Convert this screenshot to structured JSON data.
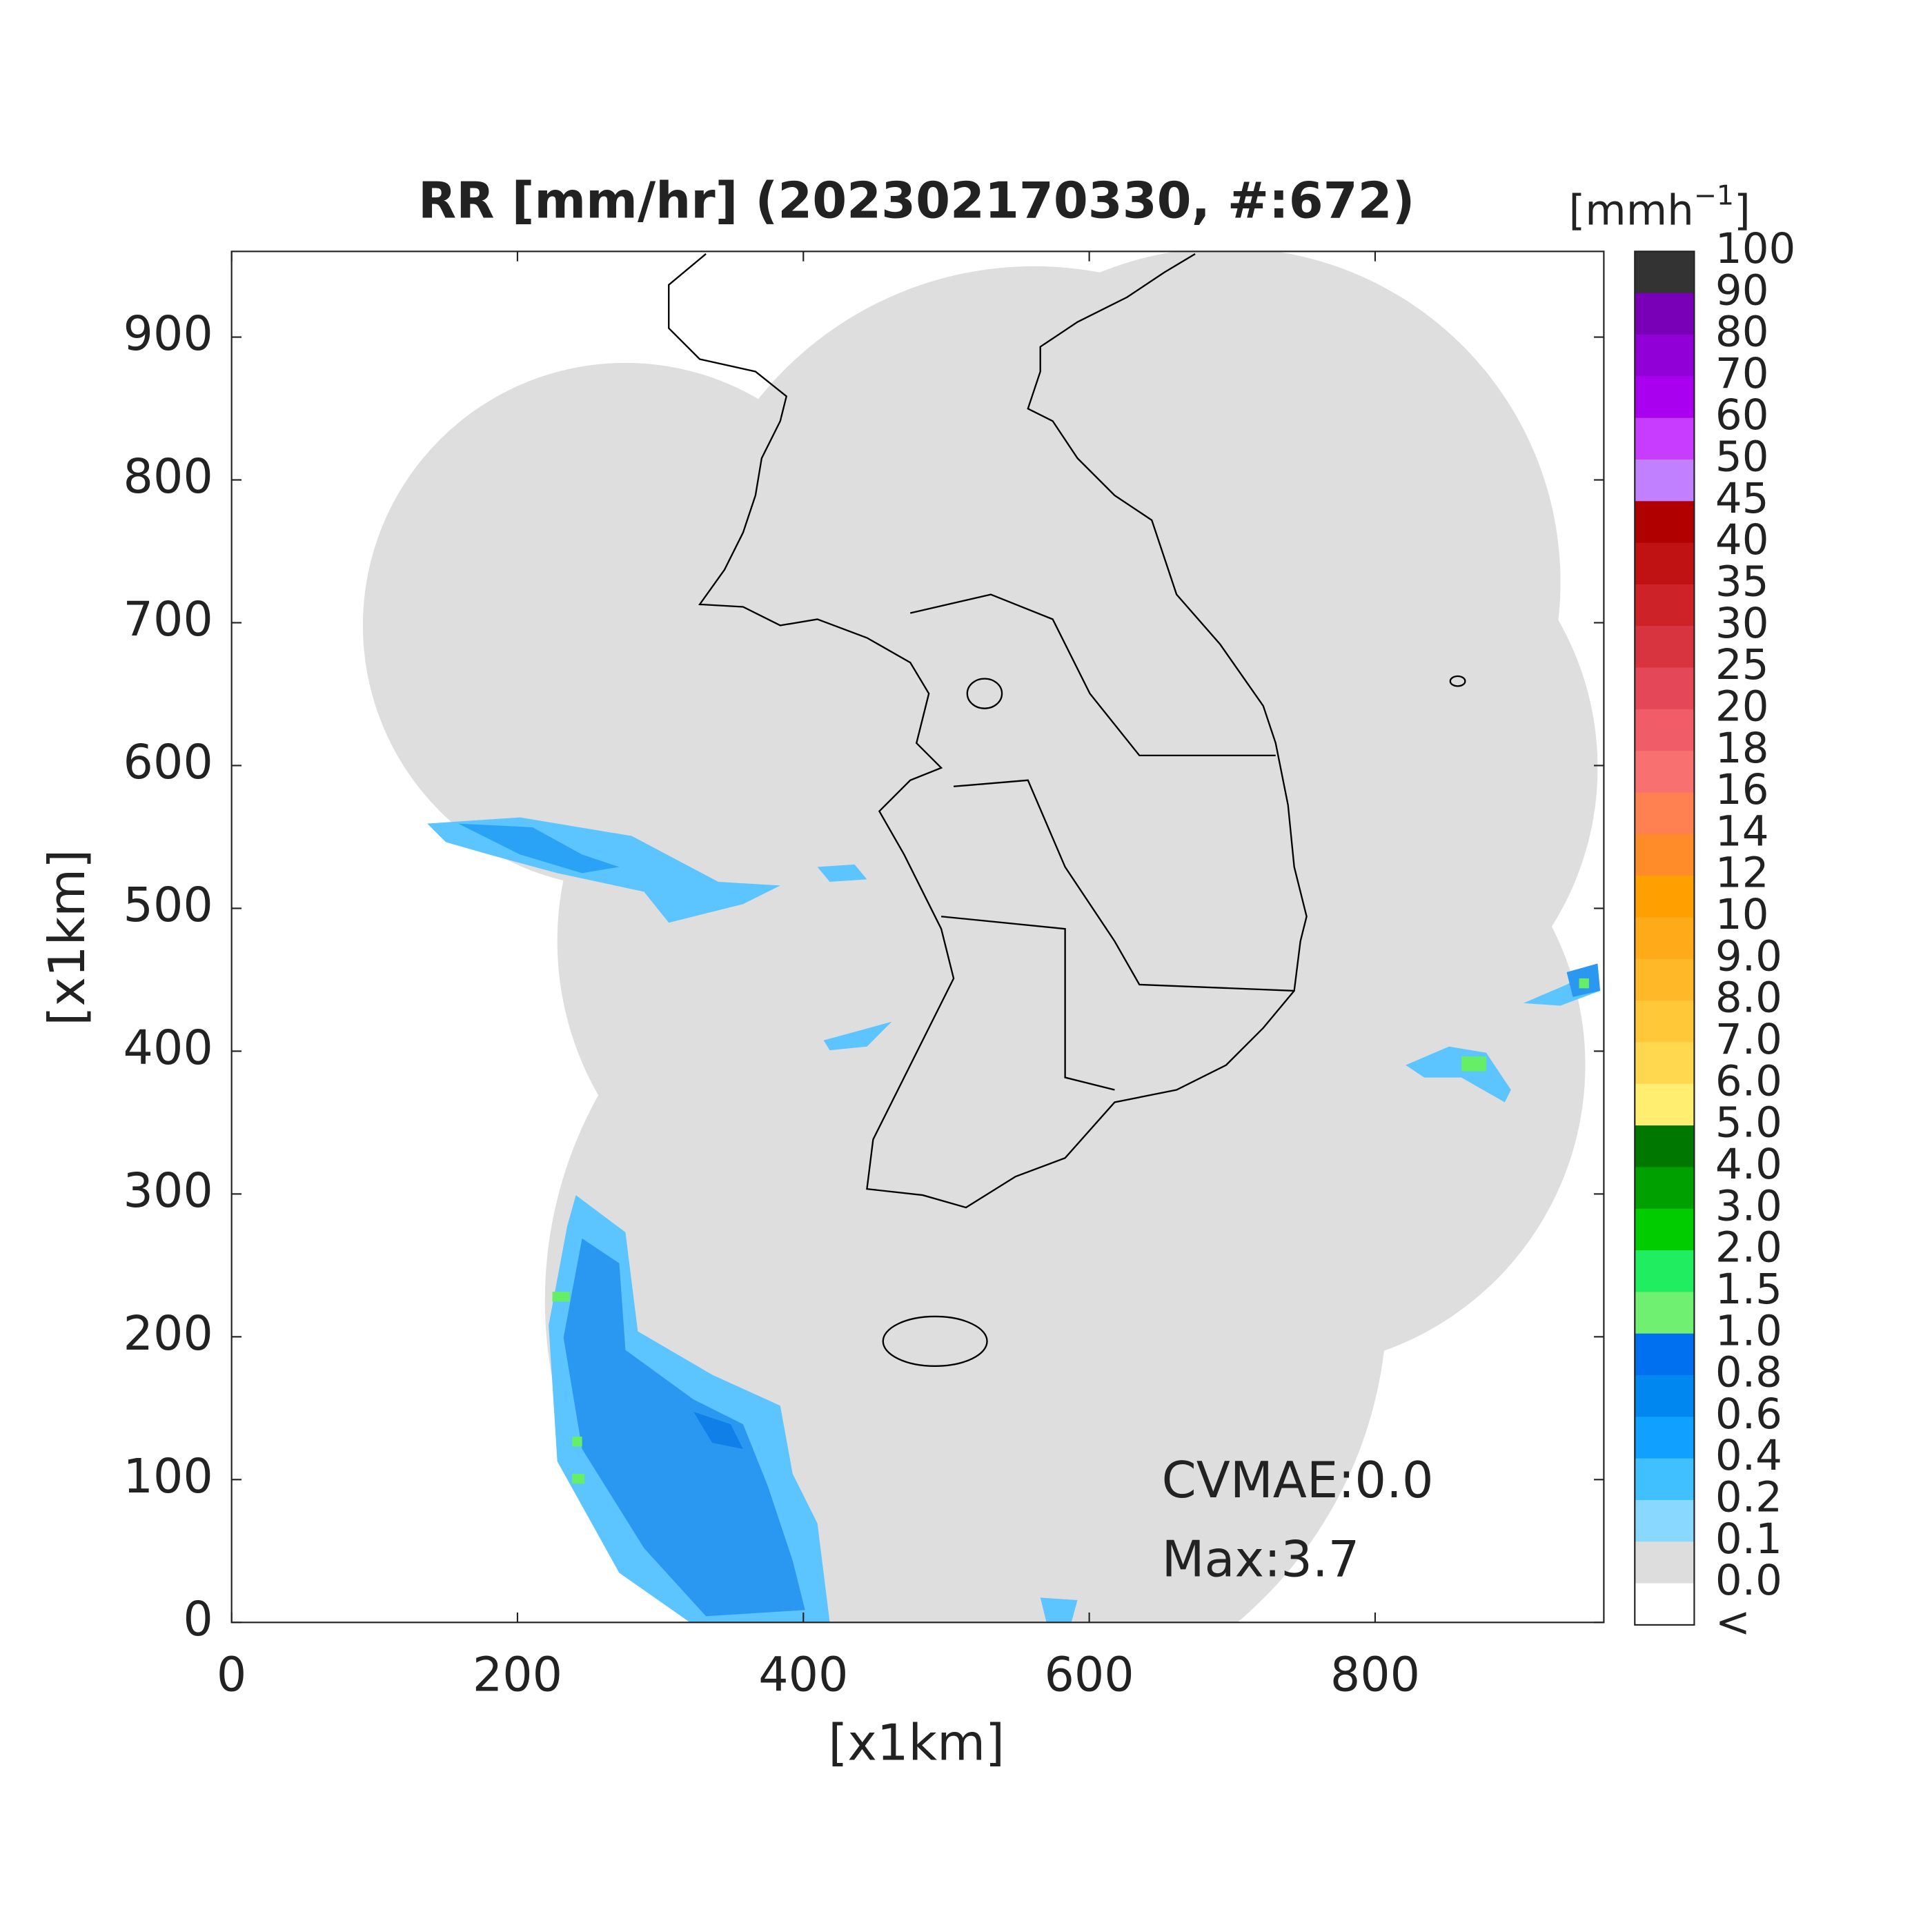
{
  "map": {
    "title": "RR [mm/hr] (202302170330, #:672)",
    "xlabel": "[x1km]",
    "ylabel": "[x1km]",
    "xlim": [
      0,
      960
    ],
    "ylim": [
      0,
      960
    ],
    "xticks": [
      0,
      200,
      400,
      600,
      800
    ],
    "yticks": [
      0,
      100,
      200,
      300,
      400,
      500,
      600,
      700,
      800,
      900
    ],
    "colorbar": {
      "unit": "[mmh",
      "unit_exponent": "−1",
      "unit_close": "]",
      "labels": [
        "100",
        "90",
        "80",
        "70",
        "60",
        "50",
        "45",
        "40",
        "35",
        "30",
        "25",
        "20",
        "18",
        "16",
        "14",
        "12",
        "10",
        "9.0",
        "8.0",
        "7.0",
        "6.0",
        "5.0",
        "4.0",
        "3.0",
        "2.0",
        "1.5",
        "1.0",
        "0.8",
        "0.6",
        "0.4",
        "0.2",
        "0.1",
        "0.0",
        "<"
      ],
      "colors": [
        "#333333",
        "#7a00b8",
        "#9200d8",
        "#aa00f0",
        "#c83cff",
        "#c080ff",
        "#b00000",
        "#c01212",
        "#cc2228",
        "#d83440",
        "#e44858",
        "#f05c68",
        "#f87070",
        "#ff8050",
        "#ff8c28",
        "#ffa000",
        "#ffaa18",
        "#ffb828",
        "#ffc838",
        "#ffd850",
        "#ffee70",
        "#007800",
        "#00a000",
        "#00cc00",
        "#20ee60",
        "#70f070",
        "#0070f0",
        "#0088f0",
        "#10a0ff",
        "#40c0ff",
        "#88d8ff",
        "#dddddd",
        "#ffffff"
      ]
    },
    "annotations": [
      "CVMAE:0.0",
      "Max:3.7"
    ]
  }
}
